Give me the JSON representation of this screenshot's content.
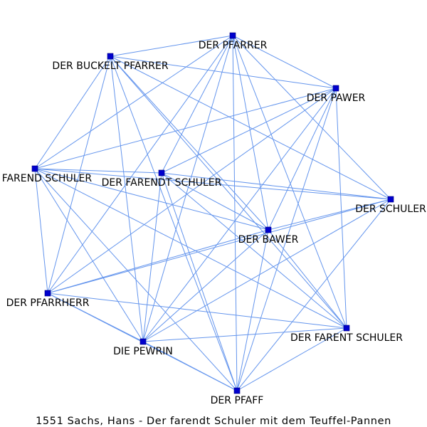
{
  "caption": "1551 Sachs, Hans - Der farendt Schuler mit dem Teuffel-Pannen",
  "colors": {
    "edge": "#6495ed",
    "node": "#0000cd",
    "background": "#ffffff"
  },
  "nodes": [
    {
      "id": "pfarrer",
      "label": "DER PFARRER"
    },
    {
      "id": "buckelt",
      "label": "DER BUCKELT PFARRER"
    },
    {
      "id": "pawer",
      "label": "DER PAWER"
    },
    {
      "id": "farend",
      "label": "DER FAREND SCHULER"
    },
    {
      "id": "farendt",
      "label": "DER FARENDT SCHULER"
    },
    {
      "id": "schuler",
      "label": "DER SCHULER"
    },
    {
      "id": "bawer",
      "label": "DER BAWER"
    },
    {
      "id": "pfarrherr",
      "label": "DER PFARRHERR"
    },
    {
      "id": "farent",
      "label": "DER FARENT SCHULER"
    },
    {
      "id": "pewrin",
      "label": "DIE PEWRIN"
    },
    {
      "id": "pfaff",
      "label": "DER PFAFF"
    }
  ],
  "edges": [
    [
      "pfarrer",
      "buckelt"
    ],
    [
      "pfarrer",
      "pawer"
    ],
    [
      "pfarrer",
      "farend"
    ],
    [
      "pfarrer",
      "farendt"
    ],
    [
      "pfarrer",
      "schuler"
    ],
    [
      "pfarrer",
      "bawer"
    ],
    [
      "pfarrer",
      "pfarrherr"
    ],
    [
      "pfarrer",
      "farent"
    ],
    [
      "pfarrer",
      "pewrin"
    ],
    [
      "pfarrer",
      "pfaff"
    ],
    [
      "buckelt",
      "pawer"
    ],
    [
      "buckelt",
      "farend"
    ],
    [
      "buckelt",
      "schuler"
    ],
    [
      "buckelt",
      "bawer"
    ],
    [
      "buckelt",
      "pfarrherr"
    ],
    [
      "buckelt",
      "farent"
    ],
    [
      "buckelt",
      "pewrin"
    ],
    [
      "buckelt",
      "pfaff"
    ],
    [
      "pawer",
      "farend"
    ],
    [
      "pawer",
      "farendt"
    ],
    [
      "pawer",
      "bawer"
    ],
    [
      "pawer",
      "pfarrherr"
    ],
    [
      "pawer",
      "farent"
    ],
    [
      "pawer",
      "pewrin"
    ],
    [
      "pawer",
      "pfaff"
    ],
    [
      "farend",
      "farendt"
    ],
    [
      "farend",
      "schuler"
    ],
    [
      "farend",
      "bawer"
    ],
    [
      "farend",
      "pfarrherr"
    ],
    [
      "farend",
      "farent"
    ],
    [
      "farend",
      "pewrin"
    ],
    [
      "farend",
      "pfaff"
    ],
    [
      "farendt",
      "schuler"
    ],
    [
      "farendt",
      "bawer"
    ],
    [
      "farendt",
      "farent"
    ],
    [
      "farendt",
      "pewrin"
    ],
    [
      "farendt",
      "pfaff"
    ],
    [
      "schuler",
      "bawer"
    ],
    [
      "schuler",
      "pfarrherr"
    ],
    [
      "schuler",
      "pewrin"
    ],
    [
      "schuler",
      "pfaff"
    ],
    [
      "bawer",
      "pfarrherr"
    ],
    [
      "bawer",
      "farent"
    ],
    [
      "bawer",
      "pewrin"
    ],
    [
      "bawer",
      "pfaff"
    ],
    [
      "pfarrherr",
      "farent"
    ],
    [
      "pfarrherr",
      "pewrin"
    ],
    [
      "pfarrherr",
      "pfaff"
    ],
    [
      "farent",
      "pewrin"
    ],
    [
      "farent",
      "pfaff"
    ],
    [
      "pewrin",
      "pfaff"
    ]
  ]
}
